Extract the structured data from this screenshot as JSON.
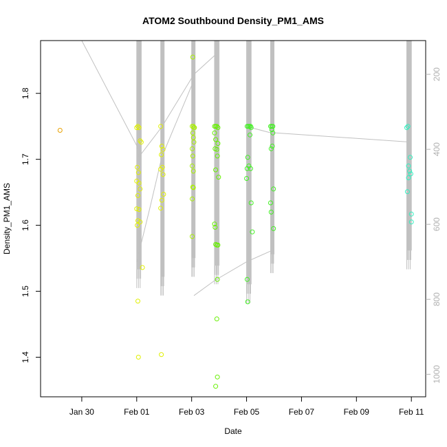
{
  "chart_data": {
    "type": "scatter",
    "title": "ATOM2 Southbound Density_PM1_AMS",
    "xlabel": "Date",
    "ylabel": "Density_PM1_AMS",
    "x_tick_labels": [
      "Jan 30",
      "Feb 01",
      "Feb 03",
      "Feb 05",
      "Feb 07",
      "Feb 09",
      "Feb 11"
    ],
    "x_ticks": [
      "2017-01-30",
      "2017-02-01",
      "2017-02-03",
      "2017-02-05",
      "2017-02-07",
      "2017-02-09",
      "2017-02-11"
    ],
    "xlim": [
      "2017-01-28T12:00",
      "2017-02-11T12:30"
    ],
    "ylim": [
      1.34,
      1.88
    ],
    "y_ticks": [
      1.4,
      1.5,
      1.6,
      1.7,
      1.8
    ],
    "y_tick_labels": [
      "1.4",
      "1.5",
      "1.6",
      "1.7",
      "1.8"
    ],
    "right_axis": {
      "ticks": [
        200,
        400,
        600,
        800,
        1000
      ],
      "tick_labels": [
        "200",
        "400",
        "600",
        "800",
        "1000"
      ],
      "lim": [
        1060,
        110
      ],
      "color": "#b0b0b0"
    },
    "point_groups": [
      {
        "color": "#e8a000",
        "points": [
          [
            "2017-01-29T05:00",
            1.744
          ]
        ]
      },
      {
        "color": "#e0f000",
        "points": [
          [
            "2017-02-01T00:00",
            1.748
          ],
          [
            "2017-02-01T01:00",
            1.75
          ],
          [
            "2017-02-01T02:00",
            1.748
          ],
          [
            "2017-02-01T03:00",
            1.728
          ],
          [
            "2017-02-01T04:00",
            1.726
          ],
          [
            "2017-02-01T00:30",
            1.688
          ],
          [
            "2017-02-01T01:30",
            1.68
          ],
          [
            "2017-02-01T00:00",
            1.667
          ],
          [
            "2017-02-01T02:00",
            1.664
          ],
          [
            "2017-02-01T03:00",
            1.655
          ],
          [
            "2017-02-01T01:00",
            1.645
          ],
          [
            "2017-02-01T00:00",
            1.625
          ],
          [
            "2017-02-01T02:00",
            1.624
          ],
          [
            "2017-02-01T01:00",
            1.607
          ],
          [
            "2017-02-01T03:00",
            1.605
          ],
          [
            "2017-02-01T00:30",
            1.6
          ],
          [
            "2017-02-01T05:00",
            1.536
          ],
          [
            "2017-02-01T01:00",
            1.485
          ],
          [
            "2017-02-01T01:30",
            1.4
          ],
          [
            "2017-02-01T21:00",
            1.75
          ],
          [
            "2017-02-01T22:00",
            1.72
          ],
          [
            "2017-02-01T23:00",
            1.715
          ],
          [
            "2017-02-01T21:30",
            1.707
          ],
          [
            "2017-02-01T22:30",
            1.688
          ],
          [
            "2017-02-01T21:00",
            1.685
          ],
          [
            "2017-02-01T23:00",
            1.677
          ],
          [
            "2017-02-01T23:30",
            1.647
          ],
          [
            "2017-02-01T22:00",
            1.638
          ],
          [
            "2017-02-01T21:00",
            1.626
          ],
          [
            "2017-02-01T21:30",
            1.404
          ]
        ]
      },
      {
        "color": "#a8f000",
        "points": [
          [
            "2017-02-03T01:00",
            1.855
          ],
          [
            "2017-02-03T00:30",
            1.75
          ],
          [
            "2017-02-03T01:30",
            1.75
          ],
          [
            "2017-02-03T02:00",
            1.748
          ],
          [
            "2017-02-03T02:30",
            1.748
          ],
          [
            "2017-02-03T01:00",
            1.74
          ],
          [
            "2017-02-03T01:30",
            1.733
          ],
          [
            "2017-02-03T02:00",
            1.726
          ],
          [
            "2017-02-03T00:30",
            1.716
          ],
          [
            "2017-02-03T01:00",
            1.705
          ],
          [
            "2017-02-03T00:30",
            1.69
          ],
          [
            "2017-02-03T01:30",
            1.682
          ],
          [
            "2017-02-03T01:00",
            1.658
          ],
          [
            "2017-02-03T01:30",
            1.657
          ],
          [
            "2017-02-03T00:30",
            1.64
          ],
          [
            "2017-02-03T00:30",
            1.583
          ]
        ]
      },
      {
        "color": "#66f000",
        "points": [
          [
            "2017-02-03T20:00",
            1.75
          ],
          [
            "2017-02-03T21:00",
            1.75
          ],
          [
            "2017-02-03T22:00",
            1.75
          ],
          [
            "2017-02-03T23:00",
            1.748
          ],
          [
            "2017-02-03T20:00",
            1.74
          ],
          [
            "2017-02-03T21:00",
            1.73
          ],
          [
            "2017-02-03T23:00",
            1.724
          ],
          [
            "2017-02-03T20:30",
            1.716
          ],
          [
            "2017-02-03T22:00",
            1.715
          ],
          [
            "2017-02-03T22:30",
            1.705
          ],
          [
            "2017-02-03T21:00",
            1.684
          ],
          [
            "2017-02-03T23:30",
            1.673
          ],
          [
            "2017-02-03T20:00",
            1.602
          ],
          [
            "2017-02-03T20:30",
            1.597
          ],
          [
            "2017-02-03T21:00",
            1.571
          ],
          [
            "2017-02-03T22:00",
            1.57
          ],
          [
            "2017-02-03T23:00",
            1.57
          ],
          [
            "2017-02-03T22:30",
            1.518
          ],
          [
            "2017-02-03T22:00",
            1.458
          ],
          [
            "2017-02-03T22:30",
            1.37
          ],
          [
            "2017-02-03T21:00",
            1.356
          ]
        ]
      },
      {
        "color": "#40f020",
        "points": [
          [
            "2017-02-05T00:30",
            1.75
          ],
          [
            "2017-02-05T01:30",
            1.75
          ],
          [
            "2017-02-05T02:30",
            1.75
          ],
          [
            "2017-02-05T03:30",
            1.75
          ],
          [
            "2017-02-05T04:00",
            1.748
          ],
          [
            "2017-02-05T03:00",
            1.737
          ],
          [
            "2017-02-05T01:00",
            1.703
          ],
          [
            "2017-02-05T02:00",
            1.69
          ],
          [
            "2017-02-05T00:30",
            1.686
          ],
          [
            "2017-02-05T03:30",
            1.686
          ],
          [
            "2017-02-05T00:00",
            1.671
          ],
          [
            "2017-02-05T04:00",
            1.634
          ],
          [
            "2017-02-05T05:00",
            1.59
          ],
          [
            "2017-02-05T00:30",
            1.518
          ],
          [
            "2017-02-05T01:00",
            1.484
          ],
          [
            "2017-02-05T21:00",
            1.75
          ],
          [
            "2017-02-05T22:00",
            1.75
          ],
          [
            "2017-02-05T23:00",
            1.75
          ],
          [
            "2017-02-05T22:00",
            1.745
          ],
          [
            "2017-02-05T23:00",
            1.74
          ],
          [
            "2017-02-05T22:30",
            1.72
          ],
          [
            "2017-02-05T21:30",
            1.716
          ],
          [
            "2017-02-05T23:30",
            1.655
          ],
          [
            "2017-02-05T21:00",
            1.634
          ],
          [
            "2017-02-05T21:30",
            1.62
          ],
          [
            "2017-02-05T23:30",
            1.595
          ]
        ]
      },
      {
        "color": "#30f0c0",
        "points": [
          [
            "2017-02-10T20:00",
            1.748
          ],
          [
            "2017-02-10T21:00",
            1.75
          ],
          [
            "2017-02-10T23:00",
            1.703
          ],
          [
            "2017-02-10T21:30",
            1.69
          ],
          [
            "2017-02-10T22:30",
            1.682
          ],
          [
            "2017-02-10T23:30",
            1.678
          ],
          [
            "2017-02-10T21:30",
            1.672
          ],
          [
            "2017-02-10T20:30",
            1.651
          ],
          [
            "2017-02-11T00:00",
            1.617
          ],
          [
            "2017-02-11T00:00",
            1.605
          ]
        ]
      }
    ],
    "trace_color": "#c0c0c0",
    "trace_segments": [
      [
        [
          "2017-01-28T12:00",
          110
        ],
        [
          "2017-01-30T00:00",
          110
        ],
        [
          "2017-02-01T00:00",
          390
        ],
        [
          "2017-02-01T02:00",
          420
        ],
        [
          "2017-02-01T12:00",
          380
        ],
        [
          "2017-02-01T22:00",
          340
        ],
        [
          "2017-02-03T02:00",
          200
        ],
        [
          "2017-02-03T20:00",
          150
        ]
      ],
      [
        [
          "2017-02-01T00:00",
          700
        ],
        [
          "2017-02-01T12:00",
          550
        ],
        [
          "2017-02-01T22:00",
          420
        ],
        [
          "2017-02-03T00:00",
          230
        ]
      ],
      [
        [
          "2017-02-03T02:00",
          790
        ],
        [
          "2017-02-03T20:00",
          750
        ],
        [
          "2017-02-05T00:00",
          700
        ],
        [
          "2017-02-05T22:00",
          670
        ]
      ],
      [
        [
          "2017-02-05T01:00",
          340
        ],
        [
          "2017-02-05T20:00",
          355
        ],
        [
          "2017-02-10T20:00",
          380
        ]
      ]
    ],
    "spikes": [
      {
        "x": [
          "2017-02-01T00:00",
          "2017-02-01T04:00"
        ],
        "bottom": 770
      },
      {
        "x": [
          "2017-02-01T21:00",
          "2017-02-02T00:00"
        ],
        "bottom": 790
      },
      {
        "x": [
          "2017-02-03T00:00",
          "2017-02-03T03:00"
        ],
        "bottom": 740
      },
      {
        "x": [
          "2017-02-03T20:00",
          "2017-02-04T00:00"
        ],
        "bottom": 760
      },
      {
        "x": [
          "2017-02-05T00:00",
          "2017-02-05T04:00"
        ],
        "bottom": 810
      },
      {
        "x": [
          "2017-02-05T21:00",
          "2017-02-06T00:00"
        ],
        "bottom": 730
      },
      {
        "x": [
          "2017-02-10T20:00",
          "2017-02-11T00:00"
        ],
        "bottom": 720
      }
    ]
  }
}
